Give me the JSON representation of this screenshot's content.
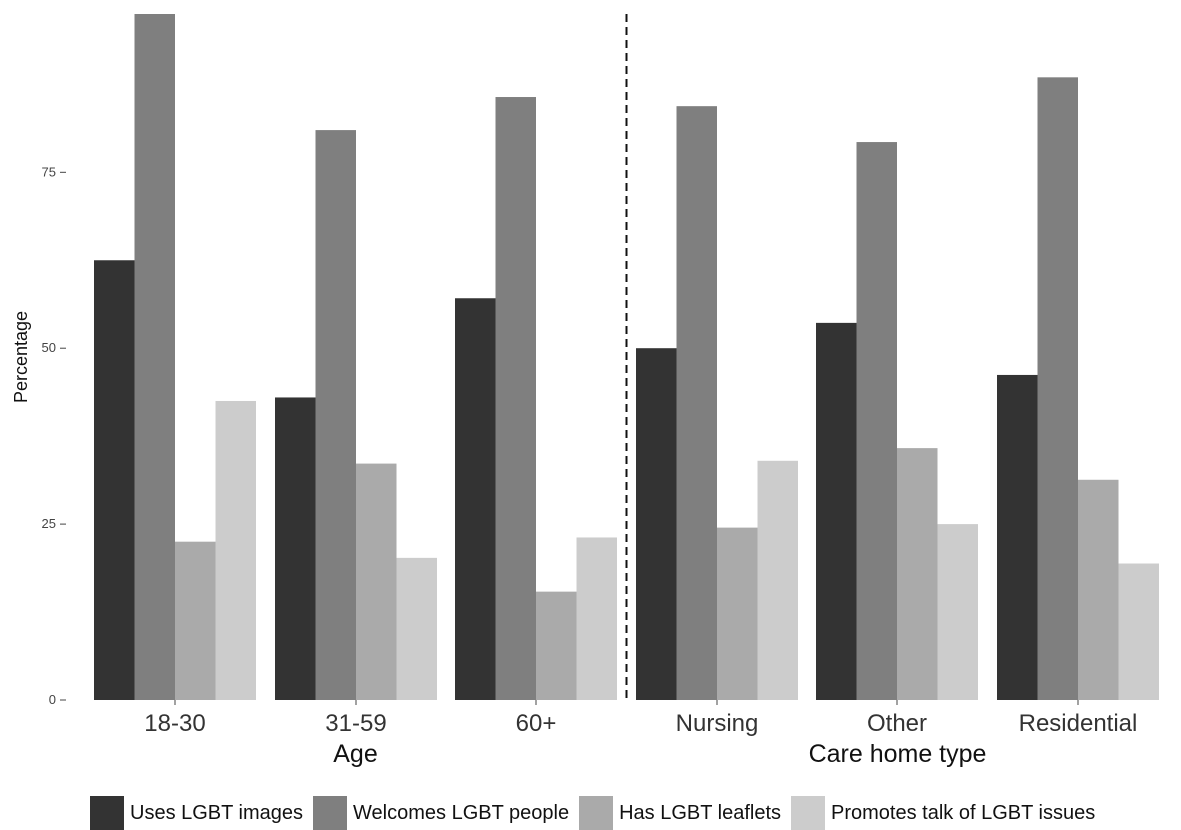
{
  "chart_data": {
    "type": "bar",
    "ylabel": "Percentage",
    "ylim": [
      0,
      97.5
    ],
    "yticks": [
      0,
      25,
      50,
      75
    ],
    "grid": false,
    "legend_position": "bottom",
    "groups": [
      {
        "label": "Age",
        "categories": [
          "18-30",
          "31-59",
          "60+"
        ]
      },
      {
        "label": "Care home type",
        "categories": [
          "Nursing",
          "Other",
          "Residential"
        ]
      }
    ],
    "categories": [
      "18-30",
      "31-59",
      "60+",
      "Nursing",
      "Other",
      "Residential"
    ],
    "series": [
      {
        "name": "Uses LGBT images",
        "color": "#333333",
        "values": [
          62.5,
          43.0,
          57.1,
          50.0,
          53.6,
          46.2
        ]
      },
      {
        "name": "Welcomes LGBT people",
        "color": "#7f7f7f",
        "values": [
          97.5,
          81.0,
          85.7,
          84.4,
          79.3,
          88.5
        ]
      },
      {
        "name": "Has LGBT leaflets",
        "color": "#aaaaaa",
        "values": [
          22.5,
          33.6,
          15.4,
          24.5,
          35.8,
          31.3
        ]
      },
      {
        "name": "Promotes talk of LGBT issues",
        "color": "#cccccc",
        "values": [
          42.5,
          20.2,
          23.1,
          34.0,
          25.0,
          19.4
        ]
      }
    ],
    "annotations": [
      {
        "type": "vertical-dashed-separator",
        "between": [
          "60+",
          "Nursing"
        ]
      }
    ]
  }
}
